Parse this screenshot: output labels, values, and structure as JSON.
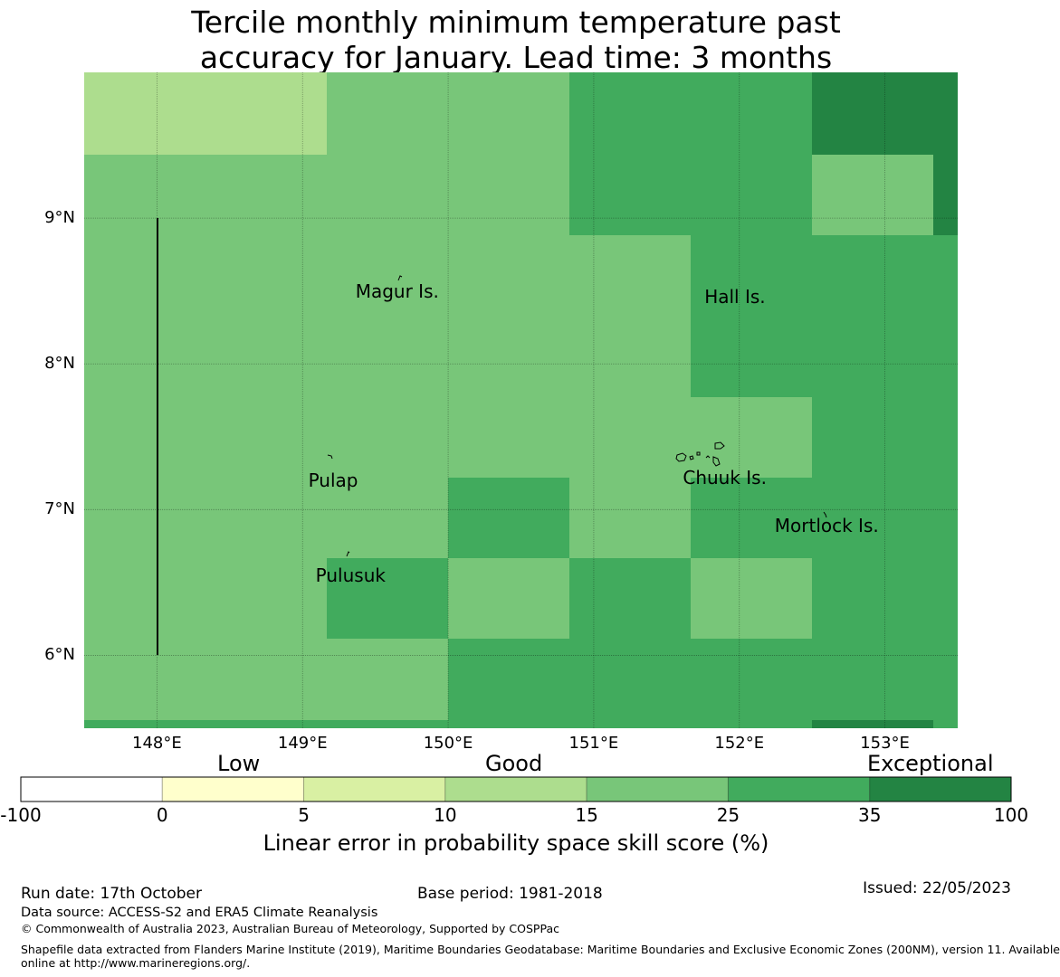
{
  "title_line1": "Tercile monthly minimum temperature past",
  "title_line2": "accuracy for January. Lead time: 3 months",
  "map": {
    "lon_range": [
      147.5,
      153.5
    ],
    "lat_range": [
      5.5,
      10.0
    ],
    "lon_ticks": [
      148,
      149,
      150,
      151,
      152,
      153
    ],
    "lat_ticks": [
      6,
      7,
      8,
      9
    ],
    "lon_tick_labels": [
      "148°E",
      "149°E",
      "150°E",
      "151°E",
      "152°E",
      "153°E"
    ],
    "lat_tick_labels": [
      "6°N",
      "7°N",
      "8°N",
      "9°N"
    ],
    "places": [
      {
        "name": "Magur Is.",
        "lon": 149.65,
        "lat": 8.5
      },
      {
        "name": "Hall Is.",
        "lon": 151.97,
        "lat": 8.46
      },
      {
        "name": "Pulap",
        "lon": 149.21,
        "lat": 7.2
      },
      {
        "name": "Chuuk Is.",
        "lon": 151.9,
        "lat": 7.22
      },
      {
        "name": "Mortlock Is.",
        "lon": 152.6,
        "lat": 6.89
      },
      {
        "name": "Pulusuk",
        "lon": 149.33,
        "lat": 6.55
      }
    ]
  },
  "colorbar": {
    "category_labels": {
      "low": "Low",
      "good": "Good",
      "exceptional": "Exceptional"
    },
    "tick_labels": [
      "-100",
      "0",
      "5",
      "10",
      "15",
      "25",
      "35",
      "100"
    ],
    "colors": [
      "#ffffff",
      "#ffffcc",
      "#d9f0a3",
      "#addd8e",
      "#78c679",
      "#41ab5d",
      "#238443"
    ],
    "title": "Linear error in probability space skill score (%)"
  },
  "footer": {
    "run_date": "Run date: 17th October",
    "base_period": "Base period: 1981-2018",
    "issued": "Issued: 22/05/2023",
    "data_source": "Data source: ACCESS-S2 and ERA5 Climate Reanalysis",
    "copyright": "© Commonwealth of Australia 2023, Australian Bureau of Meteorology, Supported by COSPPac",
    "shapefile_line1": "Shapefile data extracted from Flanders Marine Institute (2019), Maritime Boundaries Geodatabase: Maritime Boundaries and Exclusive Economic Zones (200NM), version 11. Available",
    "shapefile_line2": "online at http://www.marineregions.org/."
  }
}
